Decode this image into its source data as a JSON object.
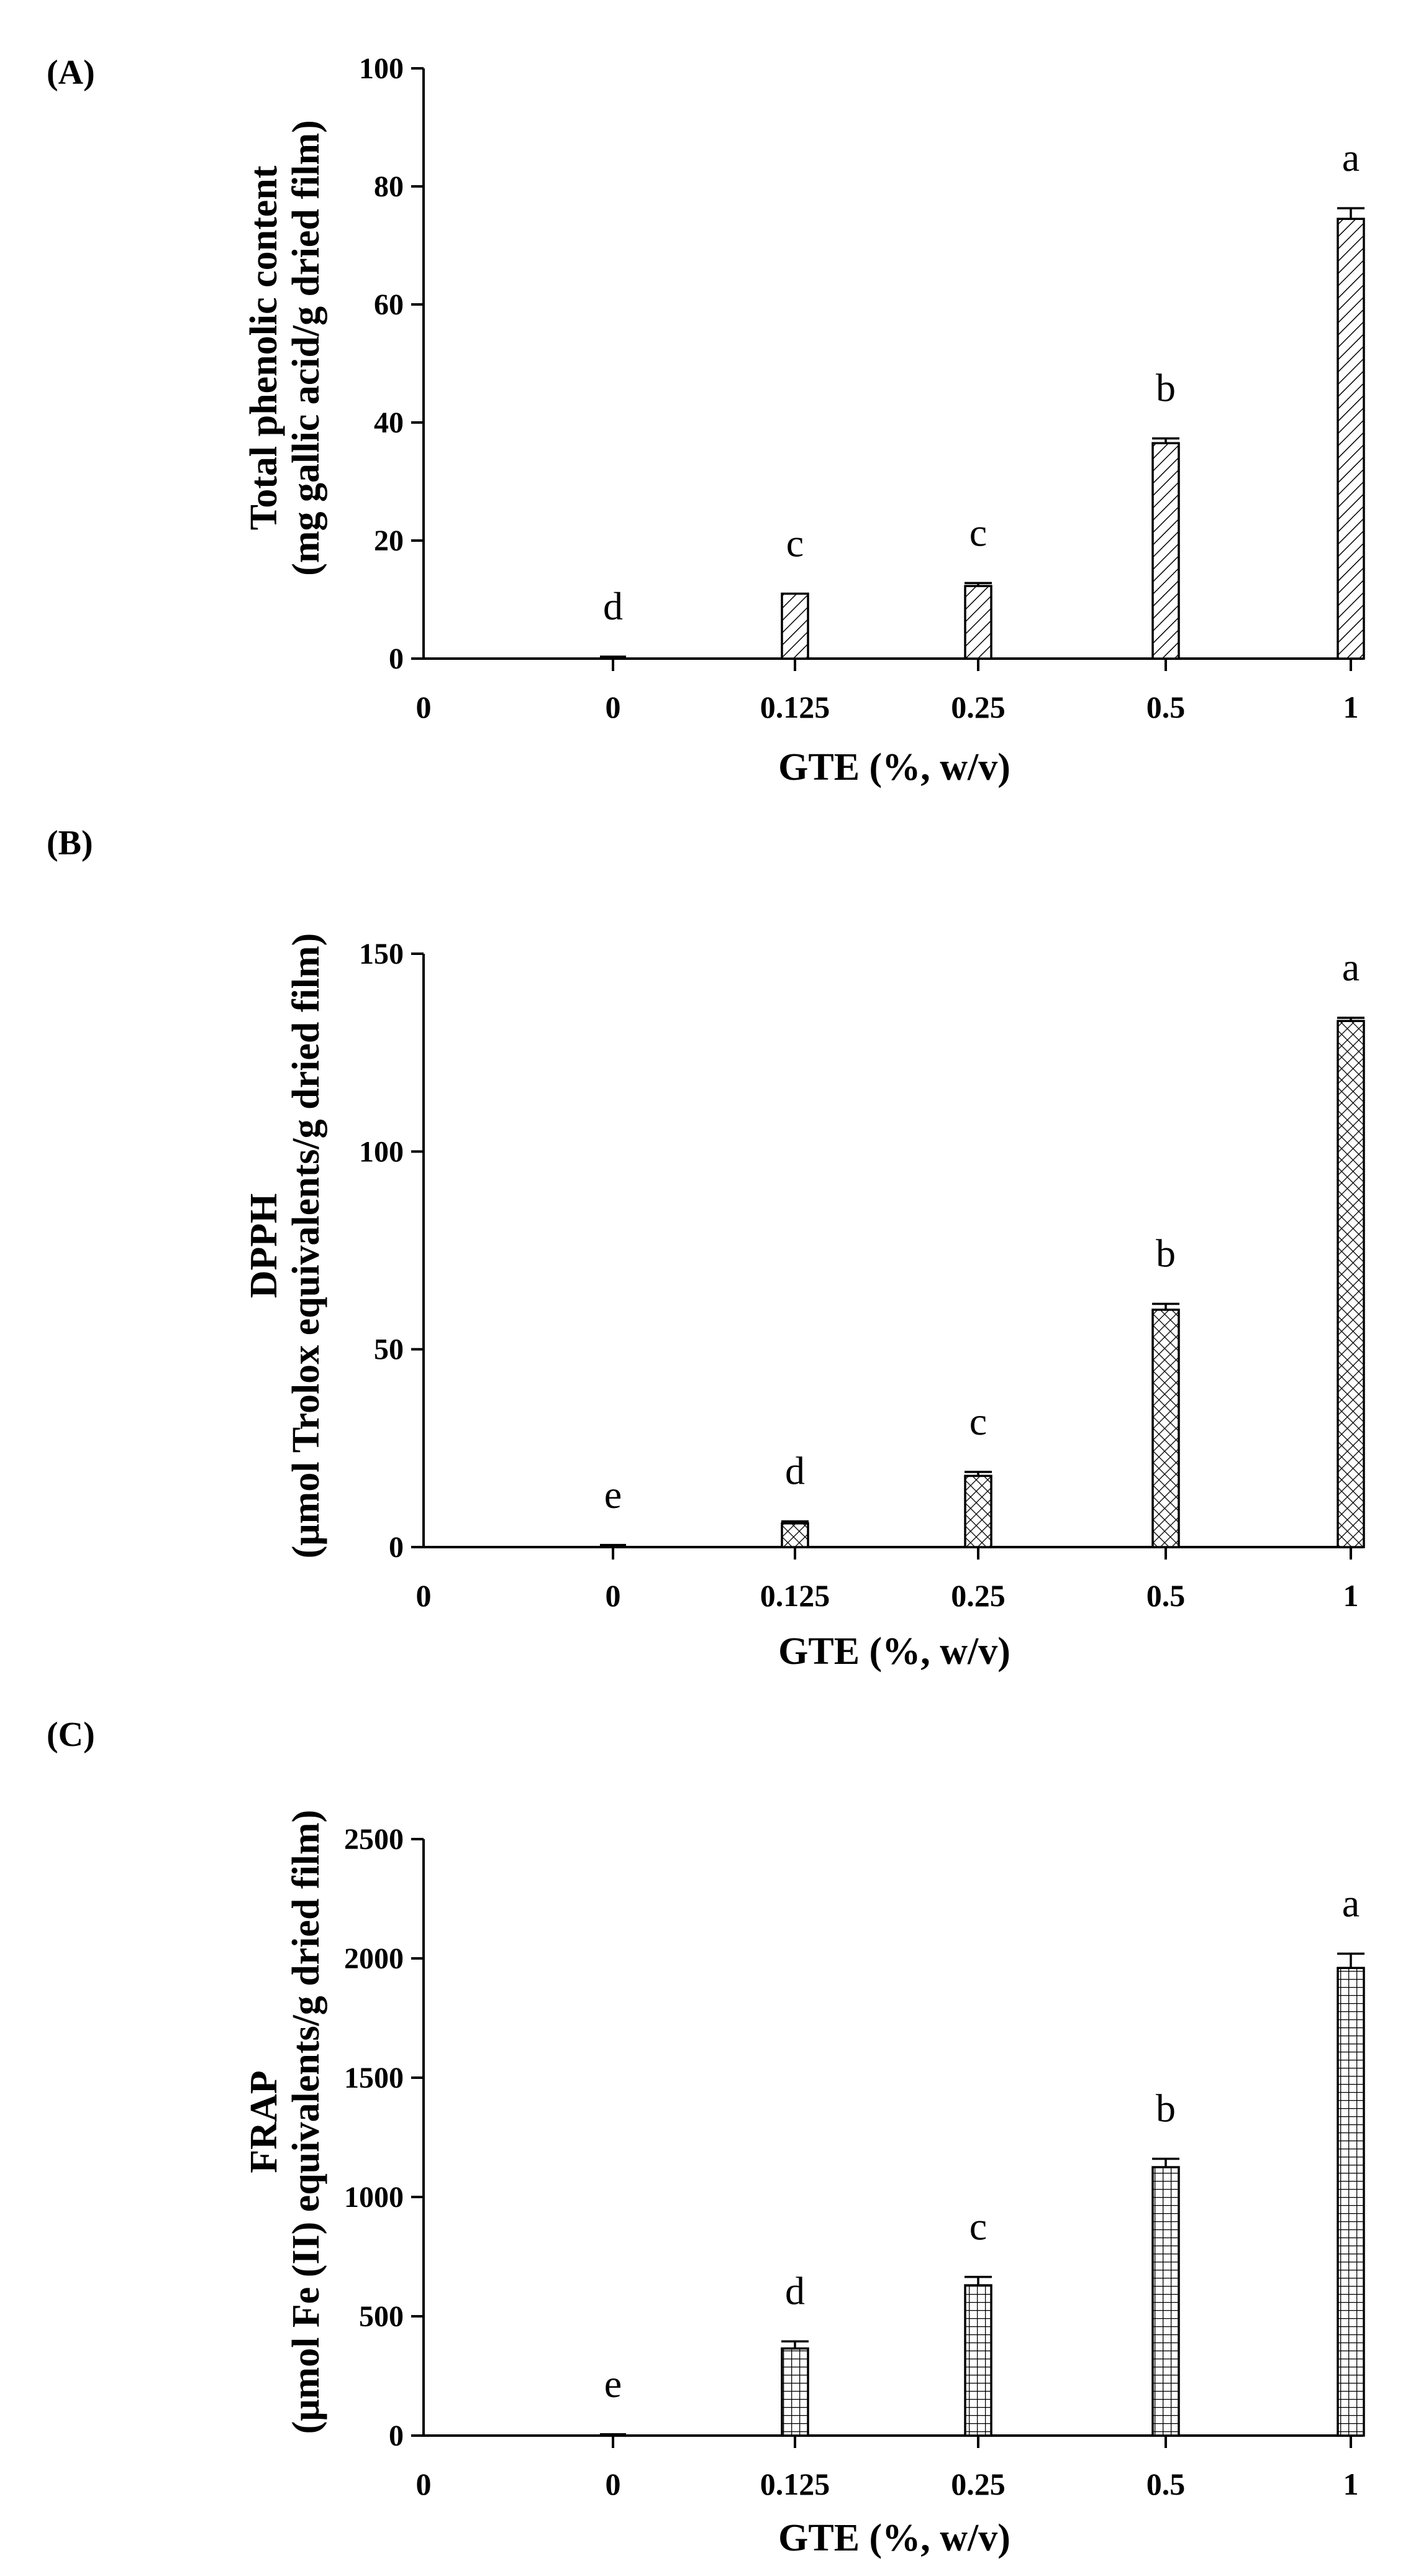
{
  "chart_data": [
    {
      "type": "bar",
      "panel_label": "(A)",
      "categories": [
        "0",
        "0.125",
        "0.25",
        "0.5",
        "1"
      ],
      "axis_origin_label": "0",
      "values": [
        0.3,
        11,
        12.3,
        36.5,
        74.5
      ],
      "errors": [
        0,
        0,
        0.5,
        0.8,
        1.8
      ],
      "significance": [
        "d",
        "c",
        "c",
        "b",
        "a"
      ],
      "ylabel_lines": [
        "Total phenolic content",
        "(mg gallic acid/g dried film)"
      ],
      "xlabel": "GTE (%, w/v)",
      "ylim": [
        0,
        100
      ],
      "yticks": [
        "0",
        "20",
        "40",
        "60",
        "80",
        "100"
      ],
      "pattern": "diagonal-hatch"
    },
    {
      "type": "bar",
      "panel_label": "(B)",
      "categories": [
        "0",
        "0.125",
        "0.25",
        "0.5",
        "1"
      ],
      "axis_origin_label": "0",
      "values": [
        0.5,
        6,
        18,
        60,
        133
      ],
      "errors": [
        0,
        0.5,
        1,
        1.5,
        0.8
      ],
      "significance": [
        "e",
        "d",
        "c",
        "b",
        "a"
      ],
      "ylabel_lines": [
        "DPPH",
        "(μmol Trolox equivalents/g dried film)"
      ],
      "xlabel": "GTE (%, w/v)",
      "ylim": [
        0,
        150
      ],
      "yticks": [
        "0",
        "50",
        "100",
        "150"
      ],
      "pattern": "cross-hatch"
    },
    {
      "type": "bar",
      "panel_label": "(C)",
      "categories": [
        "0",
        "0.125",
        "0.25",
        "0.5",
        "1"
      ],
      "axis_origin_label": "0",
      "values": [
        5,
        365,
        630,
        1125,
        1960
      ],
      "errors": [
        0,
        30,
        35,
        35,
        60
      ],
      "significance": [
        "e",
        "d",
        "c",
        "b",
        "a"
      ],
      "ylabel_lines": [
        "FRAP",
        "(μmol Fe (II) equivalents/g dried film)"
      ],
      "xlabel": "GTE (%, w/v)",
      "ylim": [
        0,
        2500
      ],
      "yticks": [
        "0",
        "500",
        "1000",
        "1500",
        "2000",
        "2500"
      ],
      "pattern": "grid-hatch"
    }
  ]
}
